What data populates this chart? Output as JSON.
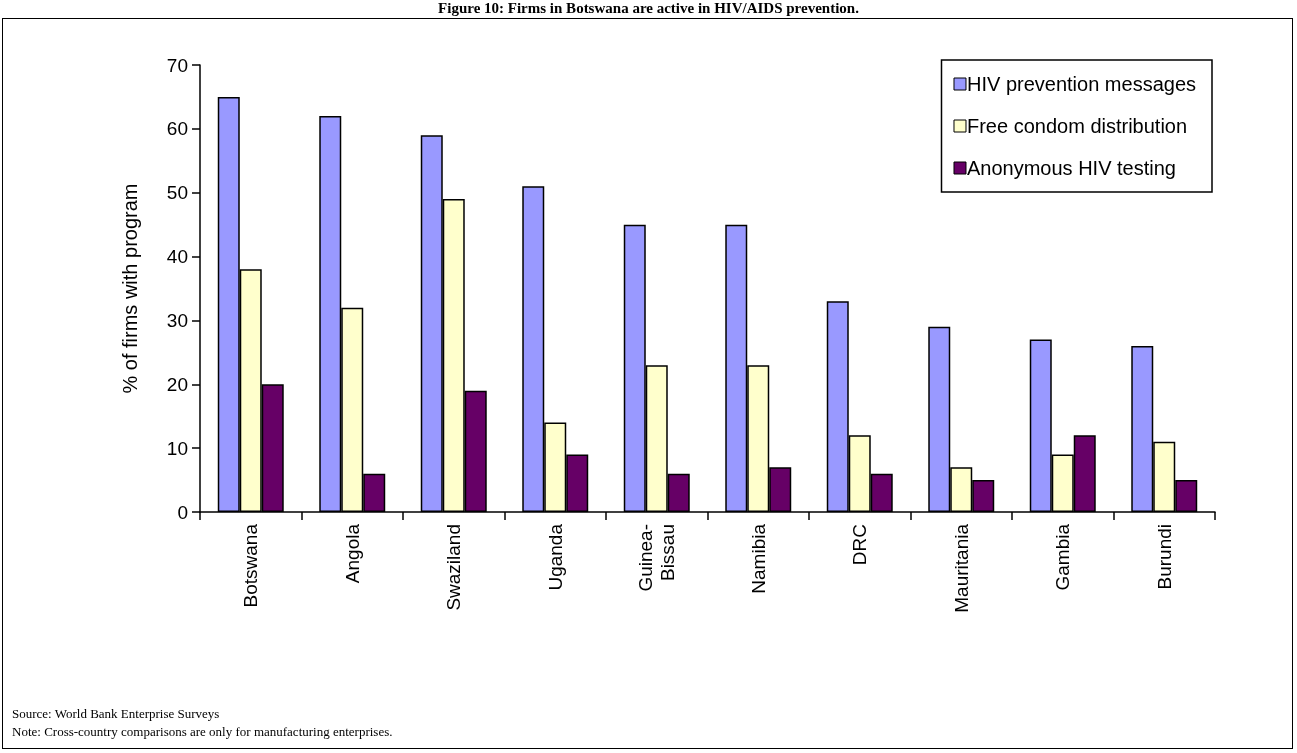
{
  "chart_data": {
    "type": "bar",
    "title": "Figure 10: Firms in Botswana are active in HIV/AIDS prevention.",
    "ylabel": "% of firms with program",
    "categories": [
      "Botswana",
      "Angola",
      "Swaziland",
      "Uganda",
      "Guinea-Bissau",
      "Namibia",
      "DRC",
      "Mauritania",
      "Gambia",
      "Burundi"
    ],
    "series": [
      {
        "name": "HIV prevention messages",
        "color": "#9999ff",
        "values": [
          65,
          62,
          59,
          51,
          45,
          45,
          33,
          29,
          27,
          26
        ]
      },
      {
        "name": "Free condom distribution",
        "color": "#ffffcc",
        "values": [
          38,
          32,
          49,
          14,
          23,
          23,
          12,
          7,
          9,
          11
        ]
      },
      {
        "name": "Anonymous HIV testing",
        "color": "#660066",
        "values": [
          20,
          6,
          19,
          9,
          6,
          7,
          6,
          5,
          12,
          5
        ]
      }
    ],
    "ylim": [
      0,
      70
    ],
    "yticks": [
      0,
      10,
      20,
      30,
      40,
      50,
      60,
      70
    ],
    "grid": false,
    "legend": "top right",
    "annotations": [
      "Source: World Bank Enterprise Surveys",
      "Note: Cross-country comparisons are only for manufacturing enterprises."
    ]
  }
}
